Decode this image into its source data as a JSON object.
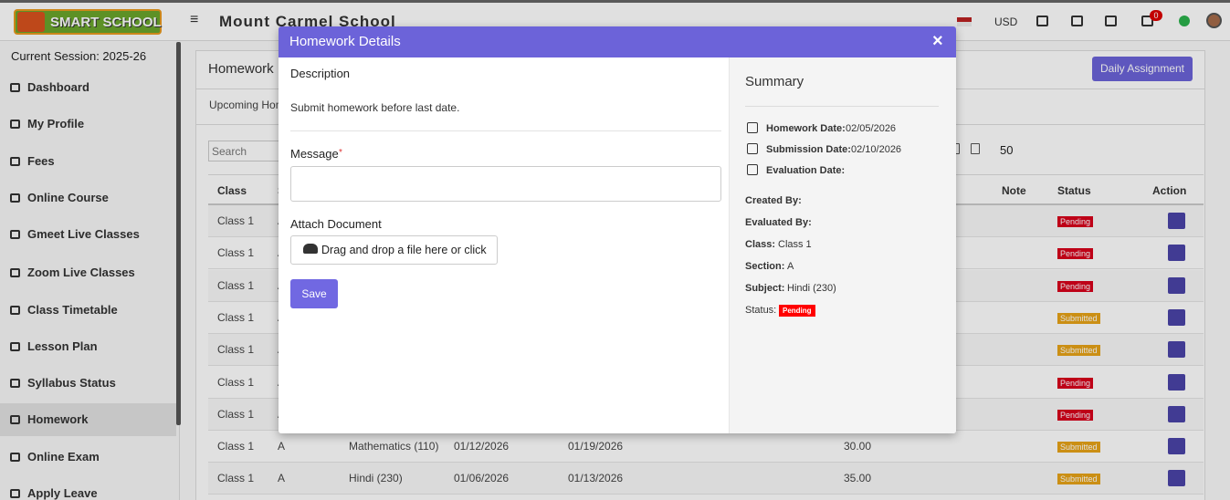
{
  "header": {
    "logo": "SMART SCHOOL",
    "school_name": "Mount Carmel School",
    "currency": "USD",
    "notification_count": "0"
  },
  "sidebar": {
    "session": "Current Session: 2025-26",
    "menu": [
      "Dashboard",
      "My Profile",
      "Fees",
      "Online Course",
      "Gmeet Live Classes",
      "Zoom Live Classes",
      "Class Timetable",
      "Lesson Plan",
      "Syllabus Status",
      "Homework",
      "Online Exam",
      "Apply Leave"
    ]
  },
  "page": {
    "title": "Homework",
    "daily_button": "Daily Assignment",
    "tab": "Upcoming Homework",
    "search_placeholder": "Search",
    "page_size": "50",
    "table": {
      "headers": [
        "Class",
        "Section",
        "Note",
        "Status",
        "Action"
      ],
      "rows": [
        {
          "class": "Class 1",
          "section": "A",
          "status": "Pending"
        },
        {
          "class": "Class 1",
          "section": "A",
          "status": "Pending"
        },
        {
          "class": "Class 1",
          "section": "A",
          "status": "Pending"
        },
        {
          "class": "Class 1",
          "section": "A",
          "status": "Submitted"
        },
        {
          "class": "Class 1",
          "section": "A",
          "status": "Submitted"
        },
        {
          "class": "Class 1",
          "section": "A",
          "status": "Pending"
        },
        {
          "class": "Class 1",
          "section": "A",
          "status": "Pending"
        },
        {
          "class": "Class 1",
          "section": "A",
          "subject": "Mathematics (110)",
          "homework_date": "01/12/2026",
          "submission_date": "01/19/2026",
          "marks": "30.00",
          "status": "Submitted"
        },
        {
          "class": "Class 1",
          "section": "A",
          "subject": "Hindi (230)",
          "homework_date": "01/06/2026",
          "submission_date": "01/13/2026",
          "marks": "35.00",
          "status": "Submitted"
        }
      ]
    }
  },
  "modal": {
    "title": "Homework Details",
    "close": "×",
    "description_label": "Description",
    "description": "Submit homework before last date.",
    "message_label": "Message",
    "required_mark": "*",
    "attach_label": "Attach Document",
    "upload_button": "Drag and drop a file here or click",
    "save_button": "Save",
    "summary": {
      "title": "Summary",
      "dates": [
        {
          "label": "Homework Date:",
          "value": "02/05/2026"
        },
        {
          "label": "Submission Date:",
          "value": "02/10/2026"
        },
        {
          "label": "Evaluation Date:"
        }
      ],
      "fields": [
        {
          "label": "Created By:"
        },
        {
          "label": "Evaluated By:"
        },
        {
          "label": "Class:",
          "value": "Class 1"
        },
        {
          "label": "Section:",
          "value": "A"
        },
        {
          "label": "Subject:",
          "value": "Hindi (230)"
        }
      ],
      "status_label": "Status:",
      "status": "Pending"
    }
  }
}
